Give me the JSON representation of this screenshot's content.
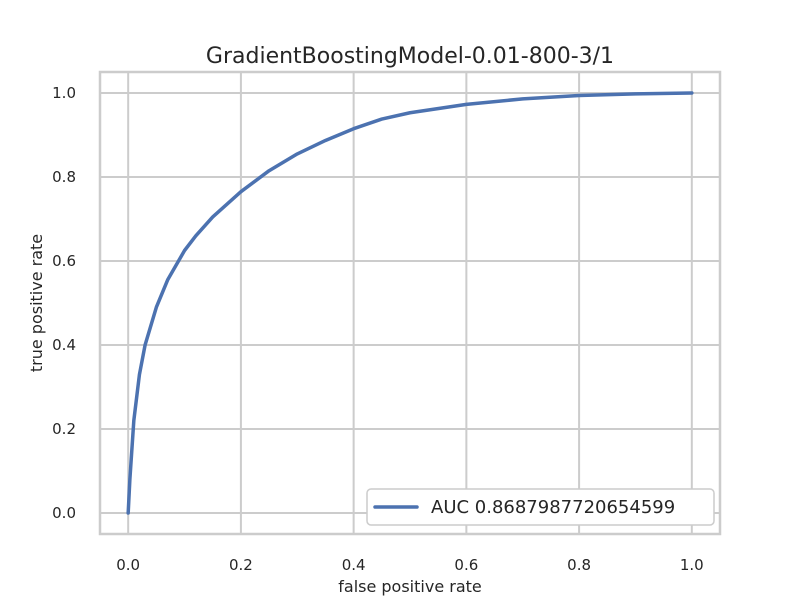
{
  "chart_data": {
    "type": "line",
    "title": "GradientBoostingModel-0.01-800-3/1",
    "xlabel": "false positive rate",
    "ylabel": "true positive rate",
    "xlim": [
      -0.05,
      1.05
    ],
    "ylim": [
      -0.05,
      1.05
    ],
    "xticks": [
      0.0,
      0.2,
      0.4,
      0.6,
      0.8,
      1.0
    ],
    "yticks": [
      0.0,
      0.2,
      0.4,
      0.6,
      0.8,
      1.0
    ],
    "xtick_labels": [
      "0.0",
      "0.2",
      "0.4",
      "0.6",
      "0.8",
      "1.0"
    ],
    "ytick_labels": [
      "0.0",
      "0.2",
      "0.4",
      "0.6",
      "0.8",
      "1.0"
    ],
    "grid": true,
    "legend_position": "lower-right",
    "series": [
      {
        "name": "AUC 0.8687987720654599",
        "color": "#4c72b0",
        "x": [
          0.0,
          0.003,
          0.01,
          0.02,
          0.03,
          0.05,
          0.07,
          0.1,
          0.12,
          0.15,
          0.2,
          0.25,
          0.3,
          0.35,
          0.4,
          0.45,
          0.5,
          0.6,
          0.7,
          0.8,
          0.9,
          1.0
        ],
        "y": [
          0.0,
          0.08,
          0.22,
          0.33,
          0.4,
          0.49,
          0.555,
          0.625,
          0.66,
          0.705,
          0.765,
          0.815,
          0.855,
          0.887,
          0.915,
          0.938,
          0.953,
          0.973,
          0.986,
          0.994,
          0.998,
          1.0
        ]
      }
    ]
  },
  "legend": {
    "label": "AUC 0.8687987720654599"
  },
  "colors": {
    "line": "#4c72b0",
    "grid": "#cccccc",
    "frame": "#cccccc",
    "text": "#262626"
  }
}
